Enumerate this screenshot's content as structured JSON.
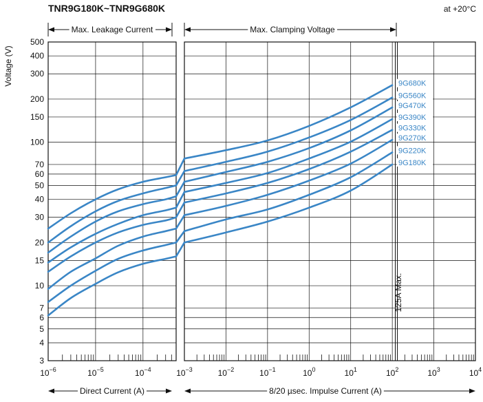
{
  "chart_data": {
    "type": "line",
    "title": "TNR9G180K~TNR9G680K",
    "condition": "at +20°C",
    "ylabel": "Voltage (V)",
    "yscale": "log",
    "ylim": [
      3,
      500
    ],
    "yticks": [
      3,
      4,
      5,
      6,
      7,
      10,
      15,
      20,
      30,
      40,
      50,
      60,
      70,
      100,
      150,
      200,
      300,
      400,
      500
    ],
    "ytick_labels": [
      "3",
      "4",
      "5",
      "6",
      "7",
      "10",
      "15",
      "20",
      "30",
      "40",
      "50",
      "60",
      "70",
      "100",
      "150",
      "200",
      "300",
      "400",
      "500"
    ],
    "accent_color": "#3a86c6",
    "grid": true,
    "annotation": "125A Max.",
    "annotation_x": 125,
    "panels": [
      {
        "id": "leakage",
        "header": "Max. Leakage Current",
        "xlabel": "Direct Current (A)",
        "xscale": "log",
        "xlim": [
          1e-06,
          0.0005
        ],
        "xtick_values": [
          1e-06,
          1e-05,
          0.0001
        ],
        "xtick_labels": [
          {
            "base": "10",
            "exp": "−6"
          },
          {
            "base": "10",
            "exp": "−5"
          },
          {
            "base": "10",
            "exp": "−4"
          }
        ]
      },
      {
        "id": "clamping",
        "header": "Max. Clamping Voltage",
        "xlabel": "8/20 µsec. Impulse Current (A)",
        "xscale": "log",
        "xlim": [
          0.001,
          10000
        ],
        "xtick_values": [
          0.001,
          0.01,
          0.1,
          1,
          10,
          100,
          1000,
          10000
        ],
        "xtick_labels": [
          {
            "base": "10",
            "exp": "−3"
          },
          {
            "base": "10",
            "exp": "−2"
          },
          {
            "base": "10",
            "exp": "−1"
          },
          {
            "base": "10",
            "exp": "0"
          },
          {
            "base": "10",
            "exp": "1"
          },
          {
            "base": "10",
            "exp": "2"
          },
          {
            "base": "10",
            "exp": "3"
          },
          {
            "base": "10",
            "exp": "4"
          }
        ]
      }
    ],
    "series": [
      {
        "name": "9G680K",
        "leakage": {
          "x": [
            1e-06,
            3e-06,
            1e-05,
            3e-05,
            0.0001,
            0.0003,
            0.0005
          ],
          "y": [
            25,
            32,
            40,
            47,
            53,
            57,
            59
          ]
        },
        "clamping": {
          "x": [
            0.001,
            0.01,
            0.1,
            1,
            10,
            100
          ],
          "y": [
            77,
            88,
            103,
            130,
            175,
            250
          ]
        }
      },
      {
        "name": "9G560K",
        "leakage": {
          "x": [
            1e-06,
            3e-06,
            1e-05,
            3e-05,
            0.0001,
            0.0003,
            0.0005
          ],
          "y": [
            20,
            26,
            33,
            39,
            44,
            48,
            50
          ]
        },
        "clamping": {
          "x": [
            0.001,
            0.01,
            0.1,
            1,
            10,
            100
          ],
          "y": [
            63,
            73,
            86,
            108,
            143,
            205
          ]
        }
      },
      {
        "name": "9G470K",
        "leakage": {
          "x": [
            1e-06,
            3e-06,
            1e-05,
            3e-05,
            0.0001,
            0.0003,
            0.0005
          ],
          "y": [
            17,
            22,
            28,
            33,
            37,
            40,
            42
          ]
        },
        "clamping": {
          "x": [
            0.001,
            0.01,
            0.1,
            1,
            10,
            100
          ],
          "y": [
            53,
            62,
            73,
            91,
            121,
            175
          ]
        }
      },
      {
        "name": "9G390K",
        "leakage": {
          "x": [
            1e-06,
            3e-06,
            1e-05,
            3e-05,
            0.0001,
            0.0003,
            0.0005
          ],
          "y": [
            14.5,
            18.5,
            23,
            27,
            31,
            33.5,
            35
          ]
        },
        "clamping": {
          "x": [
            0.001,
            0.01,
            0.1,
            1,
            10,
            100
          ],
          "y": [
            45,
            52,
            61,
            77,
            101,
            145
          ]
        }
      },
      {
        "name": "9G330K",
        "leakage": {
          "x": [
            1e-06,
            3e-06,
            1e-05,
            3e-05,
            0.0001,
            0.0003,
            0.0005
          ],
          "y": [
            12.5,
            16,
            20,
            23.5,
            26.5,
            28.5,
            30
          ]
        },
        "clamping": {
          "x": [
            0.001,
            0.01,
            0.1,
            1,
            10,
            100
          ],
          "y": [
            38,
            44,
            52,
            65,
            86,
            122
          ]
        }
      },
      {
        "name": "9G270K",
        "leakage": {
          "x": [
            1e-06,
            3e-06,
            1e-05,
            3e-05,
            0.0001,
            0.0003,
            0.0005
          ],
          "y": [
            9.5,
            12.5,
            15.5,
            19,
            22,
            24,
            25
          ]
        },
        "clamping": {
          "x": [
            0.001,
            0.01,
            0.1,
            1,
            10,
            100
          ],
          "y": [
            31,
            36,
            43,
            54,
            71,
            104
          ]
        }
      },
      {
        "name": "9G220K",
        "leakage": {
          "x": [
            1e-06,
            3e-06,
            1e-05,
            3e-05,
            0.0001,
            0.0003,
            0.0005
          ],
          "y": [
            7.7,
            10,
            12.7,
            15.4,
            17.6,
            19.2,
            20
          ]
        },
        "clamping": {
          "x": [
            0.001,
            0.01,
            0.1,
            1,
            10,
            100
          ],
          "y": [
            24,
            29,
            34,
            43,
            57,
            85
          ]
        }
      },
      {
        "name": "9G180K",
        "leakage": {
          "x": [
            1e-06,
            3e-06,
            1e-05,
            3e-05,
            0.0001,
            0.0003,
            0.0005
          ],
          "y": [
            6.2,
            8.2,
            10.3,
            12.4,
            14.2,
            15.4,
            16
          ]
        },
        "clamping": {
          "x": [
            0.001,
            0.01,
            0.1,
            1,
            10,
            100
          ],
          "y": [
            20,
            23.5,
            28,
            35,
            46,
            70
          ]
        }
      }
    ]
  }
}
